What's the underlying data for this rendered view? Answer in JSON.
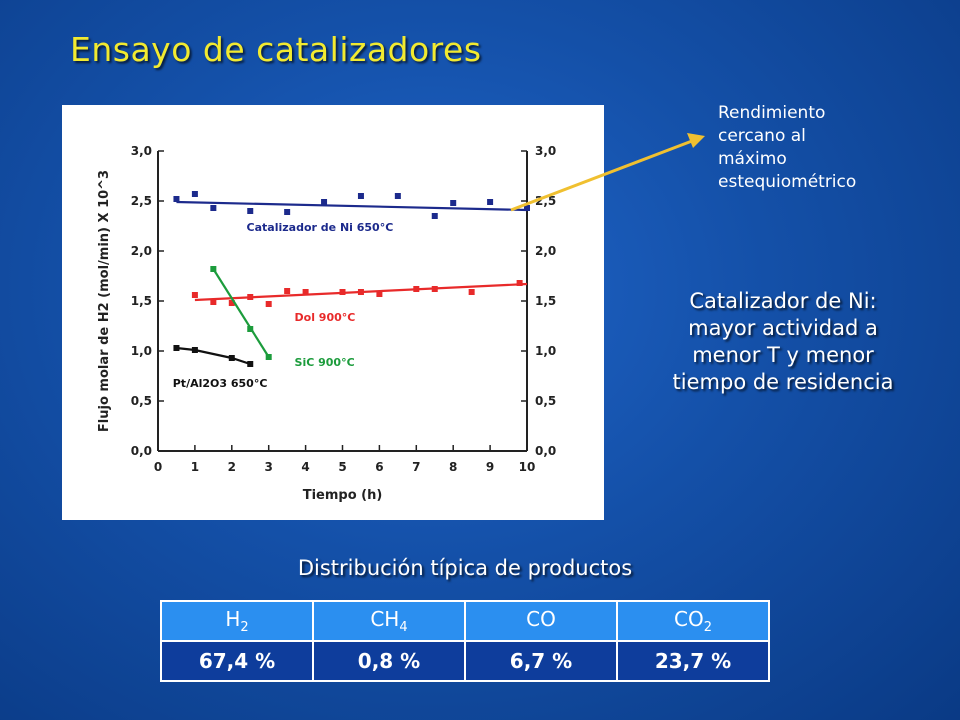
{
  "slide": {
    "title": "Ensayo de catalizadores",
    "note_lines": [
      "Rendimiento",
      "cercano al",
      "máximo",
      "estequiométrico"
    ],
    "callout_lines": [
      "Catalizador de Ni:",
      "mayor actividad a",
      "menor T y menor",
      "tiempo de residencia"
    ],
    "distribution_title": "Distribución típica de productos",
    "table": {
      "headers": [
        {
          "base": "H",
          "sub": "2"
        },
        {
          "base": "CH",
          "sub": "4"
        },
        {
          "base": "CO",
          "sub": ""
        },
        {
          "base": "CO",
          "sub": "2"
        }
      ],
      "values": [
        "67,4 %",
        "0,8 %",
        "6,7 %",
        "23,7 %"
      ]
    },
    "colors": {
      "title": "#f2ea30",
      "arrow": "#f0c030",
      "table_header": "#2b8ff0",
      "table_values": "#0e3d9c"
    }
  },
  "chart_data": {
    "type": "scatter",
    "xlabel": "Tiempo (h)",
    "ylabel": "Flujo molar de H2 (mol/min) X 10^3",
    "xlim": [
      0,
      10
    ],
    "ylim": [
      0,
      3
    ],
    "x_ticks": [
      "0",
      "1",
      "2",
      "3",
      "4",
      "5",
      "6",
      "7",
      "8",
      "9",
      "10"
    ],
    "y_ticks": [
      "0,0",
      "0,5",
      "1,0",
      "1,5",
      "2,0",
      "2,5",
      "3,0"
    ],
    "series": [
      {
        "name": "Catalizador de Ni 650°C",
        "color": "#1c2a8c",
        "points": [
          [
            0.5,
            2.52
          ],
          [
            1.0,
            2.57
          ],
          [
            1.5,
            2.43
          ],
          [
            2.5,
            2.4
          ],
          [
            3.5,
            2.39
          ],
          [
            4.5,
            2.49
          ],
          [
            5.5,
            2.55
          ],
          [
            6.5,
            2.55
          ],
          [
            7.5,
            2.35
          ],
          [
            8.0,
            2.48
          ],
          [
            9.0,
            2.49
          ],
          [
            10.0,
            2.43
          ]
        ],
        "fit": [
          [
            0.5,
            2.49
          ],
          [
            10.0,
            2.41
          ]
        ]
      },
      {
        "name": "Dol 900°C",
        "color": "#e82a2a",
        "points": [
          [
            1.0,
            1.56
          ],
          [
            1.5,
            1.49
          ],
          [
            2.0,
            1.48
          ],
          [
            2.5,
            1.54
          ],
          [
            3.0,
            1.47
          ],
          [
            3.5,
            1.6
          ],
          [
            4.0,
            1.59
          ],
          [
            5.0,
            1.59
          ],
          [
            5.5,
            1.59
          ],
          [
            6.0,
            1.57
          ],
          [
            7.0,
            1.62
          ],
          [
            7.5,
            1.62
          ],
          [
            8.5,
            1.59
          ],
          [
            9.8,
            1.68
          ]
        ],
        "fit": [
          [
            1.0,
            1.51
          ],
          [
            10.0,
            1.67
          ]
        ]
      },
      {
        "name": "SiC 900°C",
        "color": "#1c9c3c",
        "points": [
          [
            1.5,
            1.82
          ],
          [
            2.5,
            1.22
          ],
          [
            3.0,
            0.94
          ]
        ],
        "fit": [
          [
            1.5,
            1.82
          ],
          [
            3.0,
            0.94
          ]
        ]
      },
      {
        "name": "Pt/Al2O3 650°C",
        "color": "#111111",
        "points": [
          [
            0.5,
            1.03
          ],
          [
            1.0,
            1.01
          ],
          [
            2.0,
            0.93
          ],
          [
            2.5,
            0.87
          ]
        ],
        "fit": [
          [
            0.5,
            1.03
          ],
          [
            1.0,
            1.01
          ],
          [
            2.0,
            0.93
          ],
          [
            2.5,
            0.87
          ]
        ]
      }
    ],
    "series_labels": [
      {
        "text": "Catalizador de Ni 650°C",
        "x": 2.4,
        "y": 2.2,
        "color": "#1c2a8c"
      },
      {
        "text": "Dol 900°C",
        "x": 3.7,
        "y": 1.3,
        "color": "#e82a2a"
      },
      {
        "text": "SiC 900°C",
        "x": 3.7,
        "y": 0.85,
        "color": "#1c9c3c"
      },
      {
        "text": "Pt/Al2O3 650°C",
        "x": 0.4,
        "y": 0.64,
        "color": "#111111"
      }
    ]
  }
}
